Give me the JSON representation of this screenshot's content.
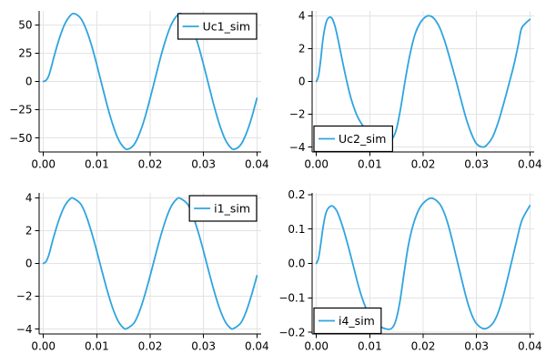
{
  "figure": {
    "background": "#ffffff",
    "grid_color": "#e3e3e3",
    "axis_color": "#000000",
    "text_color": "#000000",
    "series_color": "#2fa4df",
    "legend_border_color": "#000000",
    "legend_fill": "#ffffff"
  },
  "chart_data": [
    {
      "id": "uc1-sim",
      "type": "line",
      "title": "",
      "xlabel": "",
      "ylabel": "",
      "grid": true,
      "legend": {
        "label": "Uc1_sim",
        "position": "top-right"
      },
      "xlim": [
        -0.0008,
        0.0408
      ],
      "ylim": [
        -62.4,
        62.4
      ],
      "xticks": {
        "values": [
          0,
          0.01,
          0.02,
          0.03,
          0.04
        ],
        "labels": [
          "0.00",
          "0.01",
          "0.02",
          "0.03",
          "0.04"
        ]
      },
      "yticks": {
        "values": [
          -50,
          -25,
          0,
          25,
          50
        ],
        "labels": [
          "−50",
          "−25",
          "0",
          "25",
          "50"
        ]
      },
      "series": [
        {
          "name": "Uc1_sim",
          "points": [
            [
              0,
              0
            ],
            [
              0.0005,
              1
            ],
            [
              0.001,
              5
            ],
            [
              0.0015,
              13
            ],
            [
              0.002,
              22.1
            ],
            [
              0.003,
              38.2
            ],
            [
              0.004,
              50.7
            ],
            [
              0.005,
              58.1
            ],
            [
              0.0058,
              60
            ],
            [
              0.007,
              55.8
            ],
            [
              0.008,
              46.2
            ],
            [
              0.009,
              32.3
            ],
            [
              0.01,
              14.9
            ],
            [
              0.011,
              -3.7
            ],
            [
              0.012,
              -22.1
            ],
            [
              0.013,
              -38.2
            ],
            [
              0.014,
              -50.7
            ],
            [
              0.015,
              -58.1
            ],
            [
              0.0158,
              -60
            ],
            [
              0.017,
              -55.8
            ],
            [
              0.018,
              -46.2
            ],
            [
              0.019,
              -32.3
            ],
            [
              0.02,
              -14.9
            ],
            [
              0.021,
              3.7
            ],
            [
              0.022,
              22.1
            ],
            [
              0.023,
              38.2
            ],
            [
              0.024,
              50.7
            ],
            [
              0.025,
              58.1
            ],
            [
              0.0258,
              60
            ],
            [
              0.027,
              55.8
            ],
            [
              0.028,
              46.2
            ],
            [
              0.029,
              32.3
            ],
            [
              0.03,
              14.9
            ],
            [
              0.031,
              -3.7
            ],
            [
              0.032,
              -22.1
            ],
            [
              0.033,
              -38.2
            ],
            [
              0.034,
              -50.7
            ],
            [
              0.035,
              -58.1
            ],
            [
              0.0358,
              -60
            ],
            [
              0.037,
              -55.8
            ],
            [
              0.038,
              -46.2
            ],
            [
              0.039,
              -32.3
            ],
            [
              0.04,
              -14.9
            ]
          ]
        }
      ]
    },
    {
      "id": "uc2-sim",
      "type": "line",
      "title": "",
      "xlabel": "",
      "ylabel": "",
      "grid": true,
      "legend": {
        "label": "Uc2_sim",
        "position": "bottom-left"
      },
      "xlim": [
        -0.0008,
        0.0408
      ],
      "ylim": [
        -4.3,
        4.3
      ],
      "xticks": {
        "values": [
          0,
          0.01,
          0.02,
          0.03,
          0.04
        ],
        "labels": [
          "0.00",
          "0.01",
          "0.02",
          "0.03",
          "0.04"
        ]
      },
      "yticks": {
        "values": [
          -4,
          -2,
          0,
          2,
          4
        ],
        "labels": [
          "−4",
          "−2",
          "0",
          "2",
          "4"
        ]
      },
      "series": [
        {
          "name": "Uc2_sim",
          "points": [
            [
              0,
              0
            ],
            [
              0.0004,
              0.35
            ],
            [
              0.0008,
              1.3
            ],
            [
              0.0012,
              2.5
            ],
            [
              0.0016,
              3.3
            ],
            [
              0.002,
              3.75
            ],
            [
              0.0025,
              3.92
            ],
            [
              0.003,
              3.8
            ],
            [
              0.0035,
              3.35
            ],
            [
              0.004,
              2.65
            ],
            [
              0.0045,
              1.85
            ],
            [
              0.005,
              1.05
            ],
            [
              0.0057,
              0
            ],
            [
              0.0065,
              -1.05
            ],
            [
              0.0075,
              -2.0
            ],
            [
              0.0085,
              -2.6
            ],
            [
              0.0095,
              -2.95
            ],
            [
              0.0105,
              -3.2
            ],
            [
              0.0115,
              -3.32
            ],
            [
              0.0125,
              -3.42
            ],
            [
              0.0135,
              -3.48
            ],
            [
              0.0142,
              -3.5
            ],
            [
              0.015,
              -2.9
            ],
            [
              0.0158,
              -1.6
            ],
            [
              0.0166,
              0
            ],
            [
              0.0175,
              1.6
            ],
            [
              0.0185,
              2.9
            ],
            [
              0.0195,
              3.6
            ],
            [
              0.0205,
              3.95
            ],
            [
              0.0212,
              4.0
            ],
            [
              0.022,
              3.85
            ],
            [
              0.023,
              3.35
            ],
            [
              0.024,
              2.5
            ],
            [
              0.025,
              1.4
            ],
            [
              0.0262,
              0
            ],
            [
              0.027,
              -1.0
            ],
            [
              0.028,
              -2.2
            ],
            [
              0.029,
              -3.15
            ],
            [
              0.03,
              -3.8
            ],
            [
              0.0312,
              -4.0
            ],
            [
              0.032,
              -3.85
            ],
            [
              0.033,
              -3.4
            ],
            [
              0.034,
              -2.55
            ],
            [
              0.035,
              -1.45
            ],
            [
              0.0362,
              0
            ],
            [
              0.037,
              1.0
            ],
            [
              0.0378,
              2.2
            ],
            [
              0.0384,
              3.2
            ],
            [
              0.0392,
              3.55
            ],
            [
              0.04,
              3.78
            ]
          ]
        }
      ]
    },
    {
      "id": "i1-sim",
      "type": "line",
      "title": "",
      "xlabel": "",
      "ylabel": "",
      "grid": true,
      "legend": {
        "label": "i1_sim",
        "position": "top-right"
      },
      "xlim": [
        -0.0008,
        0.0408
      ],
      "ylim": [
        -4.3,
        4.3
      ],
      "xticks": {
        "values": [
          0,
          0.01,
          0.02,
          0.03,
          0.04
        ],
        "labels": [
          "0.00",
          "0.01",
          "0.02",
          "0.03",
          "0.04"
        ]
      },
      "yticks": {
        "values": [
          -4,
          -2,
          0,
          2,
          4
        ],
        "labels": [
          "−4",
          "−2",
          "0",
          "2",
          "4"
        ]
      },
      "series": [
        {
          "name": "i1_sim",
          "points": [
            [
              0,
              0
            ],
            [
              0.0005,
              0.12
            ],
            [
              0.001,
              0.5
            ],
            [
              0.0015,
              1.1
            ],
            [
              0.002,
              1.7
            ],
            [
              0.003,
              2.74
            ],
            [
              0.004,
              3.51
            ],
            [
              0.005,
              3.93
            ],
            [
              0.0056,
              3.97
            ],
            [
              0.007,
              3.62
            ],
            [
              0.008,
              2.92
            ],
            [
              0.009,
              1.92
            ],
            [
              0.01,
              0.75
            ],
            [
              0.011,
              -0.5
            ],
            [
              0.012,
              -1.7
            ],
            [
              0.013,
              -2.74
            ],
            [
              0.014,
              -3.51
            ],
            [
              0.015,
              -3.93
            ],
            [
              0.0156,
              -3.97
            ],
            [
              0.017,
              -3.62
            ],
            [
              0.018,
              -2.92
            ],
            [
              0.019,
              -1.92
            ],
            [
              0.02,
              -0.75
            ],
            [
              0.021,
              0.5
            ],
            [
              0.022,
              1.7
            ],
            [
              0.023,
              2.74
            ],
            [
              0.024,
              3.51
            ],
            [
              0.025,
              3.93
            ],
            [
              0.0256,
              3.97
            ],
            [
              0.027,
              3.62
            ],
            [
              0.028,
              2.92
            ],
            [
              0.029,
              1.92
            ],
            [
              0.03,
              0.75
            ],
            [
              0.031,
              -0.5
            ],
            [
              0.032,
              -1.7
            ],
            [
              0.033,
              -2.74
            ],
            [
              0.034,
              -3.51
            ],
            [
              0.035,
              -3.93
            ],
            [
              0.0356,
              -3.97
            ],
            [
              0.037,
              -3.62
            ],
            [
              0.038,
              -2.92
            ],
            [
              0.039,
              -1.92
            ],
            [
              0.04,
              -0.75
            ]
          ]
        }
      ]
    },
    {
      "id": "i4-sim",
      "type": "line",
      "title": "",
      "xlabel": "",
      "ylabel": "",
      "grid": true,
      "legend": {
        "label": "i4_sim",
        "position": "bottom-left"
      },
      "xlim": [
        -0.0008,
        0.0408
      ],
      "ylim": [
        -0.205,
        0.205
      ],
      "xticks": {
        "values": [
          0,
          0.01,
          0.02,
          0.03,
          0.04
        ],
        "labels": [
          "0.00",
          "0.01",
          "0.02",
          "0.03",
          "0.04"
        ]
      },
      "yticks": {
        "values": [
          -0.2,
          -0.1,
          0,
          0.1,
          0.2
        ],
        "labels": [
          "−0.2",
          "−0.1",
          "0.0",
          "0.1",
          "0.2"
        ]
      },
      "series": [
        {
          "name": "i4_sim",
          "points": [
            [
              0,
              0
            ],
            [
              0.0004,
              0.015
            ],
            [
              0.0008,
              0.055
            ],
            [
              0.0012,
              0.1
            ],
            [
              0.0016,
              0.135
            ],
            [
              0.002,
              0.155
            ],
            [
              0.0025,
              0.165
            ],
            [
              0.003,
              0.167
            ],
            [
              0.0035,
              0.16
            ],
            [
              0.004,
              0.147
            ],
            [
              0.005,
              0.103
            ],
            [
              0.006,
              0.048
            ],
            [
              0.007,
              -0.012
            ],
            [
              0.008,
              -0.072
            ],
            [
              0.009,
              -0.119
            ],
            [
              0.01,
              -0.152
            ],
            [
              0.011,
              -0.172
            ],
            [
              0.012,
              -0.184
            ],
            [
              0.013,
              -0.19
            ],
            [
              0.014,
              -0.19
            ],
            [
              0.0148,
              -0.17
            ],
            [
              0.0156,
              -0.115
            ],
            [
              0.0165,
              -0.02
            ],
            [
              0.0172,
              0.05
            ],
            [
              0.018,
              0.105
            ],
            [
              0.019,
              0.15
            ],
            [
              0.02,
              0.175
            ],
            [
              0.0215,
              0.19
            ],
            [
              0.023,
              0.175
            ],
            [
              0.024,
              0.145
            ],
            [
              0.025,
              0.095
            ],
            [
              0.0265,
              0
            ],
            [
              0.028,
              -0.095
            ],
            [
              0.029,
              -0.145
            ],
            [
              0.03,
              -0.175
            ],
            [
              0.0315,
              -0.19
            ],
            [
              0.033,
              -0.175
            ],
            [
              0.034,
              -0.145
            ],
            [
              0.035,
              -0.095
            ],
            [
              0.0365,
              0
            ],
            [
              0.0375,
              0.065
            ],
            [
              0.0385,
              0.125
            ],
            [
              0.04,
              0.168
            ]
          ]
        }
      ]
    }
  ]
}
